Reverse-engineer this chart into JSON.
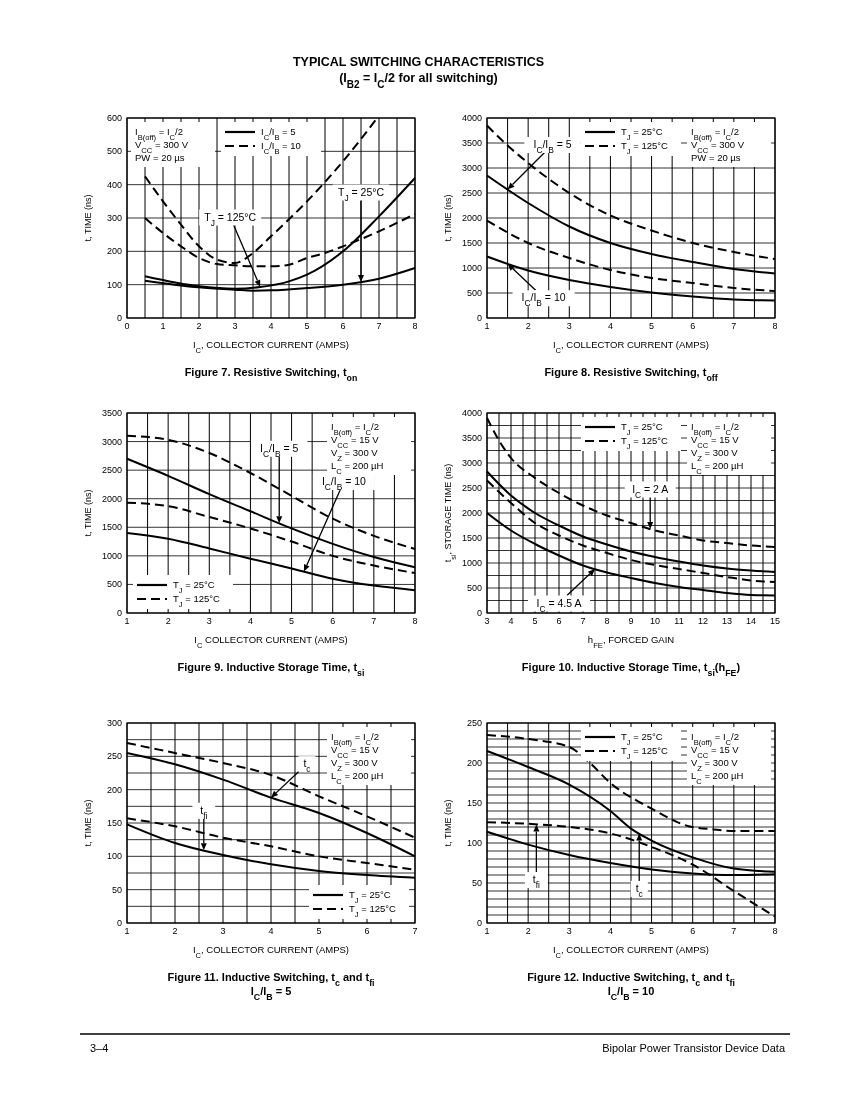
{
  "chart_data": [
    {
      "type": "other",
      "title": "TYPICAL SWITCHING CHARACTERISTICS",
      "subtitle": "(I$_{B2}$ = I$_{C}$/2 for all switching)"
    },
    {
      "type": "line",
      "title": "Figure 7. Resistive Switching, t$_{on}$",
      "xlabel": "I$_{C}$, COLLECTOR CURRENT (AMPS)",
      "ylabel": "t, TIME (ns)",
      "xlim": [
        0,
        8
      ],
      "ylim": [
        0,
        600
      ],
      "xticks": [
        0,
        {
          "value": 0.5,
          "label": null
        },
        1,
        {
          "value": 1.5,
          "label": null
        },
        2,
        {
          "value": 2.5,
          "label": null
        },
        3,
        {
          "value": 3.5,
          "label": null
        },
        4,
        {
          "value": 4.5,
          "label": null
        },
        5,
        {
          "value": 5.5,
          "label": null
        },
        6,
        {
          "value": 6.5,
          "label": null
        },
        7,
        {
          "value": 7.5,
          "label": null
        },
        8
      ],
      "yticks": [
        0,
        100,
        200,
        300,
        400,
        500,
        600
      ],
      "grid": true,
      "legend": "top",
      "series": [
        {
          "name": "I$_{C}$/I$_{B}$ = 5",
          "color": "#000000",
          "line_style": "solid",
          "x": [
            0.5,
            2,
            3,
            3.7,
            4.5,
            5,
            6,
            7,
            8
          ],
          "values": [
            125,
            95,
            88,
            93,
            110,
            130,
            200,
            305,
            420
          ]
        },
        {
          "color": "#000000",
          "line_style": "solid",
          "x": [
            0.5,
            2,
            3,
            3.5,
            4,
            5,
            6,
            7,
            8
          ],
          "values": [
            112,
            92,
            85,
            82,
            83,
            90,
            100,
            118,
            150
          ]
        },
        {
          "name": "I$_{C}$/I$_{B}$ = 10",
          "color": "#000000",
          "line_style": "dashed",
          "x": [
            0.5,
            1,
            1.5,
            2,
            2.5,
            3,
            3.5,
            4,
            5,
            6,
            6.95
          ],
          "values": [
            425,
            350,
            280,
            215,
            175,
            165,
            195,
            245,
            350,
            470,
            600
          ]
        },
        {
          "color": "#000000",
          "line_style": "dashed",
          "x": [
            0.5,
            1,
            1.5,
            2,
            2.5,
            3,
            3.5,
            4,
            4.5,
            5,
            5.5,
            6,
            7,
            8
          ],
          "values": [
            300,
            255,
            215,
            180,
            162,
            158,
            155,
            155,
            160,
            180,
            195,
            215,
            260,
            312
          ]
        }
      ],
      "annotations": [
        "I$_{B(off)}$ = I$_{C}$/2",
        "V$_{CC}$ = 300 V",
        "PW = 20 µs",
        {
          "text": "T$_{J}$ = 125°C",
          "x": 3.7,
          "y": 93
        },
        {
          "text": "T$_{J}$ = 25°C",
          "x": 6.5,
          "y": 108
        }
      ]
    },
    {
      "type": "line",
      "title": "Figure 8. Resistive Switching, t$_{off}$",
      "xlabel": "I$_{C}$, COLLECTOR CURRENT (AMPS)",
      "ylabel": "t, TIME (ns)",
      "xlim": [
        1,
        8
      ],
      "ylim": [
        0,
        4000
      ],
      "xticks": [
        1,
        {
          "value": 1.5,
          "label": null
        },
        2,
        {
          "value": 2.5,
          "label": null
        },
        3,
        {
          "value": 3.5,
          "label": null
        },
        4,
        {
          "value": 4.5,
          "label": null
        },
        5,
        {
          "value": 5.5,
          "label": null
        },
        6,
        {
          "value": 6.5,
          "label": null
        },
        7,
        {
          "value": 7.5,
          "label": null
        },
        8
      ],
      "yticks": [
        0,
        500,
        1000,
        1500,
        2000,
        2500,
        3000,
        3500,
        4000
      ],
      "grid": true,
      "legend": "top",
      "series": [
        {
          "name": "T$_{J}$ = 25°C",
          "color": "#000000",
          "line_style": "solid",
          "x": [
            1,
            2,
            3,
            4,
            5,
            6,
            7,
            8
          ],
          "values": [
            2850,
            2300,
            1830,
            1500,
            1280,
            1120,
            980,
            890
          ]
        },
        {
          "name": "T$_{J}$ = 125°C",
          "color": "#000000",
          "line_style": "dashed",
          "x": [
            1,
            1.5,
            2,
            3,
            4,
            5,
            6,
            7,
            8
          ],
          "values": [
            3850,
            3450,
            3100,
            2500,
            2050,
            1750,
            1500,
            1320,
            1180
          ]
        },
        {
          "color": "#000000",
          "line_style": "dashed",
          "x": [
            1,
            2,
            3,
            4,
            5,
            6,
            7,
            8
          ],
          "values": [
            1950,
            1500,
            1200,
            960,
            800,
            700,
            600,
            540
          ]
        },
        {
          "color": "#000000",
          "line_style": "solid",
          "x": [
            1,
            2,
            3,
            4,
            5,
            6,
            7,
            8
          ],
          "values": [
            1230,
            950,
            760,
            620,
            510,
            430,
            370,
            350
          ]
        }
      ],
      "annotations": [
        "I$_{B(off)}$ = I$_{C}$/2",
        "V$_{CC}$ = 300 V",
        "PW = 20 µs",
        {
          "text": "I$_{C}$/I$_{B}$ = 5",
          "x": 1.5,
          "y": 2570
        },
        {
          "text": "I$_{C}$/I$_{B}$ = 10",
          "x": 1.5,
          "y": 1085
        }
      ]
    },
    {
      "type": "line",
      "title": "Figure 9. Inductive Storage Time, t$_{si}$",
      "xlabel": "I$_{C}$ COLLECTOR CURRENT (AMPS)",
      "ylabel": "t, TIME (ns)",
      "xlim": [
        1,
        8
      ],
      "ylim": [
        0,
        3500
      ],
      "xticks": [
        1,
        {
          "value": 1.5,
          "label": null
        },
        2,
        {
          "value": 2.5,
          "label": null
        },
        3,
        {
          "value": 3.5,
          "label": null
        },
        4,
        {
          "value": 4.5,
          "label": null
        },
        5,
        {
          "value": 5.5,
          "label": null
        },
        6,
        {
          "value": 6.5,
          "label": null
        },
        7,
        {
          "value": 7.5,
          "label": null
        },
        8
      ],
      "yticks": [
        0,
        500,
        1000,
        1500,
        2000,
        2500,
        3000,
        3500
      ],
      "grid": true,
      "legend": "bottom left",
      "series": [
        {
          "name": "T$_{J}$ = 25°C",
          "color": "#000000",
          "line_style": "solid",
          "x": [
            1,
            2,
            3,
            4,
            5,
            6,
            7,
            8
          ],
          "values": [
            2700,
            2400,
            2080,
            1780,
            1480,
            1210,
            980,
            800
          ]
        },
        {
          "name": "T$_{J}$ = 125°C",
          "color": "#000000",
          "line_style": "dashed",
          "x": [
            1,
            2,
            3,
            4,
            5,
            6,
            7,
            8
          ],
          "values": [
            3100,
            3030,
            2800,
            2450,
            2050,
            1650,
            1350,
            1120
          ]
        },
        {
          "color": "#000000",
          "line_style": "dashed",
          "x": [
            1,
            2,
            3,
            4,
            5,
            6,
            7,
            8
          ],
          "values": [
            1930,
            1870,
            1680,
            1480,
            1250,
            1000,
            830,
            700
          ]
        },
        {
          "color": "#000000",
          "line_style": "solid",
          "x": [
            1,
            2,
            3,
            4,
            5,
            6,
            7,
            8
          ],
          "values": [
            1400,
            1300,
            1130,
            950,
            780,
            600,
            480,
            400
          ]
        }
      ],
      "annotations": [
        "I$_{B(off)}$ = I$_{C}$/2",
        "V$_{CC}$ = 15 V",
        "V$_{Z}$ = 300 V",
        "L$_{C}$ = 200 µH",
        {
          "text": "I$_{C}$/I$_{B}$ = 5",
          "x": 4.7,
          "y": 1570
        },
        {
          "text": "I$_{C}$/I$_{B}$ = 10",
          "x": 5.3,
          "y": 725
        }
      ]
    },
    {
      "type": "line",
      "title": "Figure 10. Inductive Storage Time, t$_{si}$(h$_{FE}$)",
      "xlabel": "h$_{FE}$, FORCED GAIN",
      "ylabel": "t$_{si}$, STORAGE TIME (ns)",
      "xlim": [
        3,
        15
      ],
      "ylim": [
        0,
        4000
      ],
      "xticks": [
        3,
        {
          "value": 3.5,
          "label": null
        },
        4,
        {
          "value": 4.5,
          "label": null
        },
        5,
        {
          "value": 5.5,
          "label": null
        },
        6,
        {
          "value": 6.5,
          "label": null
        },
        7,
        {
          "value": 7.5,
          "label": null
        },
        8,
        {
          "value": 8.5,
          "label": null
        },
        9,
        {
          "value": 9.5,
          "label": null
        },
        10,
        {
          "value": 10.5,
          "label": null
        },
        11,
        {
          "value": 11.5,
          "label": null
        },
        12,
        {
          "value": 12.5,
          "label": null
        },
        13,
        {
          "value": 13.5,
          "label": null
        },
        14,
        {
          "value": 14.5,
          "label": null
        },
        15
      ],
      "yticks": [
        0,
        {
          "value": 250,
          "label": null
        },
        500,
        {
          "value": 750,
          "label": null
        },
        1000,
        {
          "value": 1250,
          "label": null
        },
        1500,
        {
          "value": 1750,
          "label": null
        },
        2000,
        {
          "value": 2250,
          "label": null
        },
        2500,
        {
          "value": 2750,
          "label": null
        },
        3000,
        {
          "value": 3250,
          "label": null
        },
        3500,
        {
          "value": 3750,
          "label": null
        },
        4000
      ],
      "grid": true,
      "legend": "top",
      "series": [
        {
          "name": "T$_{J}$ = 25°C",
          "color": "#000000",
          "line_style": "solid",
          "x": [
            3,
            4,
            5,
            6,
            7,
            8,
            9,
            10,
            11,
            12,
            13,
            14,
            15
          ],
          "values": [
            2830,
            2350,
            2000,
            1750,
            1530,
            1370,
            1230,
            1120,
            1030,
            950,
            890,
            850,
            820
          ]
        },
        {
          "name": "T$_{J}$ = 125°C",
          "color": "#000000",
          "line_style": "dashed",
          "x": [
            3,
            3.5,
            4,
            5,
            6,
            7,
            8,
            9,
            10,
            11,
            12,
            13,
            14,
            15
          ],
          "values": [
            3900,
            3450,
            3100,
            2700,
            2400,
            2150,
            1950,
            1800,
            1650,
            1550,
            1450,
            1400,
            1350,
            1320
          ]
        },
        {
          "color": "#000000",
          "line_style": "dashed",
          "x": [
            3,
            4,
            5,
            6,
            7,
            8,
            9,
            10,
            11,
            12,
            13,
            14,
            15
          ],
          "values": [
            2650,
            2200,
            1800,
            1550,
            1350,
            1200,
            1060,
            960,
            880,
            800,
            720,
            650,
            620
          ]
        },
        {
          "color": "#000000",
          "line_style": "solid",
          "x": [
            3,
            4,
            5,
            6,
            7,
            8,
            9,
            10,
            11,
            12,
            13,
            14,
            15
          ],
          "values": [
            2000,
            1650,
            1380,
            1150,
            950,
            810,
            700,
            600,
            520,
            460,
            400,
            360,
            350
          ]
        }
      ],
      "annotations": [
        "I$_{B(off)}$ = I$_{C}$/2",
        "V$_{CC}$ = 15 V",
        "V$_{Z}$ = 300 V",
        "L$_{C}$ = 200 µH",
        {
          "text": "I$_{C}$ = 2 A",
          "x": 9.8,
          "y": 1680
        },
        {
          "text": "I$_{C}$ = 4.5 A",
          "x": 7.5,
          "y": 880
        }
      ]
    },
    {
      "type": "line",
      "title": "Figure 11. Inductive Switching, t$_{c}$ and t$_{fi}$",
      "subtitle": "I$_{C}$/I$_{B}$ = 5",
      "xlabel": "I$_{C}$, COLLECTOR CURRENT (AMPS)",
      "ylabel": "t, TIME (ns)",
      "xlim": [
        1,
        7
      ],
      "ylim": [
        0,
        300
      ],
      "xticks": [
        1,
        {
          "value": 1.5,
          "label": null
        },
        2,
        {
          "value": 2.5,
          "label": null
        },
        3,
        {
          "value": 3.5,
          "label": null
        },
        4,
        {
          "value": 4.5,
          "label": null
        },
        5,
        {
          "value": 5.5,
          "label": null
        },
        6,
        {
          "value": 6.5,
          "label": null
        },
        7
      ],
      "yticks": [
        0,
        {
          "value": 25,
          "label": null
        },
        50,
        {
          "value": 75,
          "label": null
        },
        100,
        {
          "value": 125,
          "label": null
        },
        150,
        {
          "value": 175,
          "label": null
        },
        200,
        {
          "value": 225,
          "label": null
        },
        250,
        {
          "value": 275,
          "label": null
        },
        300
      ],
      "grid": true,
      "legend": "bottom right",
      "series": [
        {
          "name": "T$_{J}$ = 25°C",
          "color": "#000000",
          "line_style": "solid",
          "x": [
            1,
            2,
            3,
            4,
            5,
            6,
            7
          ],
          "values": [
            255,
            238,
            215,
            188,
            165,
            135,
            100
          ]
        },
        {
          "name": "T$_{J}$ = 125°C",
          "color": "#000000",
          "line_style": "dashed",
          "x": [
            1,
            2,
            3,
            4,
            5,
            6,
            7
          ],
          "values": [
            270,
            255,
            240,
            222,
            190,
            160,
            128
          ]
        },
        {
          "color": "#000000",
          "line_style": "dashed",
          "x": [
            1,
            2,
            3,
            4,
            5,
            6,
            7
          ],
          "values": [
            157,
            145,
            128,
            115,
            100,
            90,
            80
          ]
        },
        {
          "color": "#000000",
          "line_style": "solid",
          "x": [
            1,
            2,
            3,
            4,
            5,
            6,
            7
          ],
          "values": [
            148,
            120,
            102,
            88,
            78,
            72,
            68
          ]
        }
      ],
      "annotations": [
        "I$_{B(off)}$ = I$_{C}$/2",
        "V$_{CC}$ = 15 V",
        "V$_{Z}$ = 300 V",
        "L$_{C}$ = 200 µH",
        {
          "text": "t$_{c}$",
          "x": 4,
          "y": 188
        },
        {
          "text": "t$_{fi}$",
          "x": 2.6,
          "y": 109
        }
      ]
    },
    {
      "type": "line",
      "title": "Figure 12. Inductive Switching, t$_{c}$ and t$_{fi}$",
      "subtitle": "I$_{C}$/I$_{B}$ = 10",
      "xlabel": "I$_{C}$, COLLECTOR CURRENT (AMPS)",
      "ylabel": "t, TIME (ns)",
      "xlim": [
        1,
        8
      ],
      "ylim": [
        0,
        250
      ],
      "xticks": [
        1,
        {
          "value": 1.5,
          "label": null
        },
        2,
        {
          "value": 2.5,
          "label": null
        },
        3,
        {
          "value": 3.5,
          "label": null
        },
        4,
        {
          "value": 4.5,
          "label": null
        },
        5,
        {
          "value": 5.5,
          "label": null
        },
        6,
        {
          "value": 6.5,
          "label": null
        },
        7,
        {
          "value": 7.5,
          "label": null
        },
        8
      ],
      "yticks": [
        0,
        {
          "value": 10,
          "label": null
        },
        {
          "value": 20,
          "label": null
        },
        {
          "value": 30,
          "label": null
        },
        {
          "value": 40,
          "label": null
        },
        50,
        {
          "value": 60,
          "label": null
        },
        {
          "value": 70,
          "label": null
        },
        {
          "value": 80,
          "label": null
        },
        {
          "value": 90,
          "label": null
        },
        100,
        {
          "value": 110,
          "label": null
        },
        {
          "value": 120,
          "label": null
        },
        {
          "value": 130,
          "label": null
        },
        {
          "value": 140,
          "label": null
        },
        150,
        {
          "value": 160,
          "label": null
        },
        {
          "value": 170,
          "label": null
        },
        {
          "value": 180,
          "label": null
        },
        {
          "value": 190,
          "label": null
        },
        200,
        {
          "value": 210,
          "label": null
        },
        {
          "value": 220,
          "label": null
        },
        {
          "value": 230,
          "label": null
        },
        {
          "value": 240,
          "label": null
        },
        250
      ],
      "grid": true,
      "legend": "top",
      "series": [
        {
          "name": "T$_{J}$ = 25°C",
          "color": "#000000",
          "line_style": "solid",
          "x": [
            1,
            2,
            3,
            4,
            4.5,
            5,
            6,
            7,
            8
          ],
          "values": [
            215,
            195,
            173,
            140,
            118,
            103,
            82,
            68,
            64
          ]
        },
        {
          "name": "T$_{J}$ = 125°C",
          "color": "#000000",
          "line_style": "dashed",
          "x": [
            1,
            2,
            3,
            3.5,
            4,
            5,
            5.9,
            6.5,
            7,
            8
          ],
          "values": [
            235,
            230,
            220,
            200,
            175,
            143,
            121,
            117,
            115,
            115
          ]
        },
        {
          "color": "#000000",
          "line_style": "dashed",
          "x": [
            1,
            2,
            3,
            4,
            5,
            6,
            7,
            8
          ],
          "values": [
            126,
            124,
            120,
            112,
            95,
            73,
            40,
            8
          ]
        },
        {
          "color": "#000000",
          "line_style": "solid",
          "x": [
            1,
            2,
            3,
            4,
            5,
            6,
            7,
            8
          ],
          "values": [
            114,
            98,
            85,
            75,
            67,
            62,
            60,
            61
          ]
        }
      ],
      "annotations": [
        "I$_{B(off)}$ = I$_{C}$/2",
        "V$_{CC}$ = 15 V",
        "V$_{Z}$ = 300 V",
        "L$_{C}$ = 200 µH",
        {
          "text": "t$_{c}$",
          "x": 4.7,
          "y": 112
        },
        {
          "text": "t$_{fi}$",
          "x": 2.2,
          "y": 123
        }
      ]
    },
    {
      "type": "other",
      "annotations": [
        "3–4",
        "Bipolar Power Transistor Device Data"
      ]
    }
  ]
}
